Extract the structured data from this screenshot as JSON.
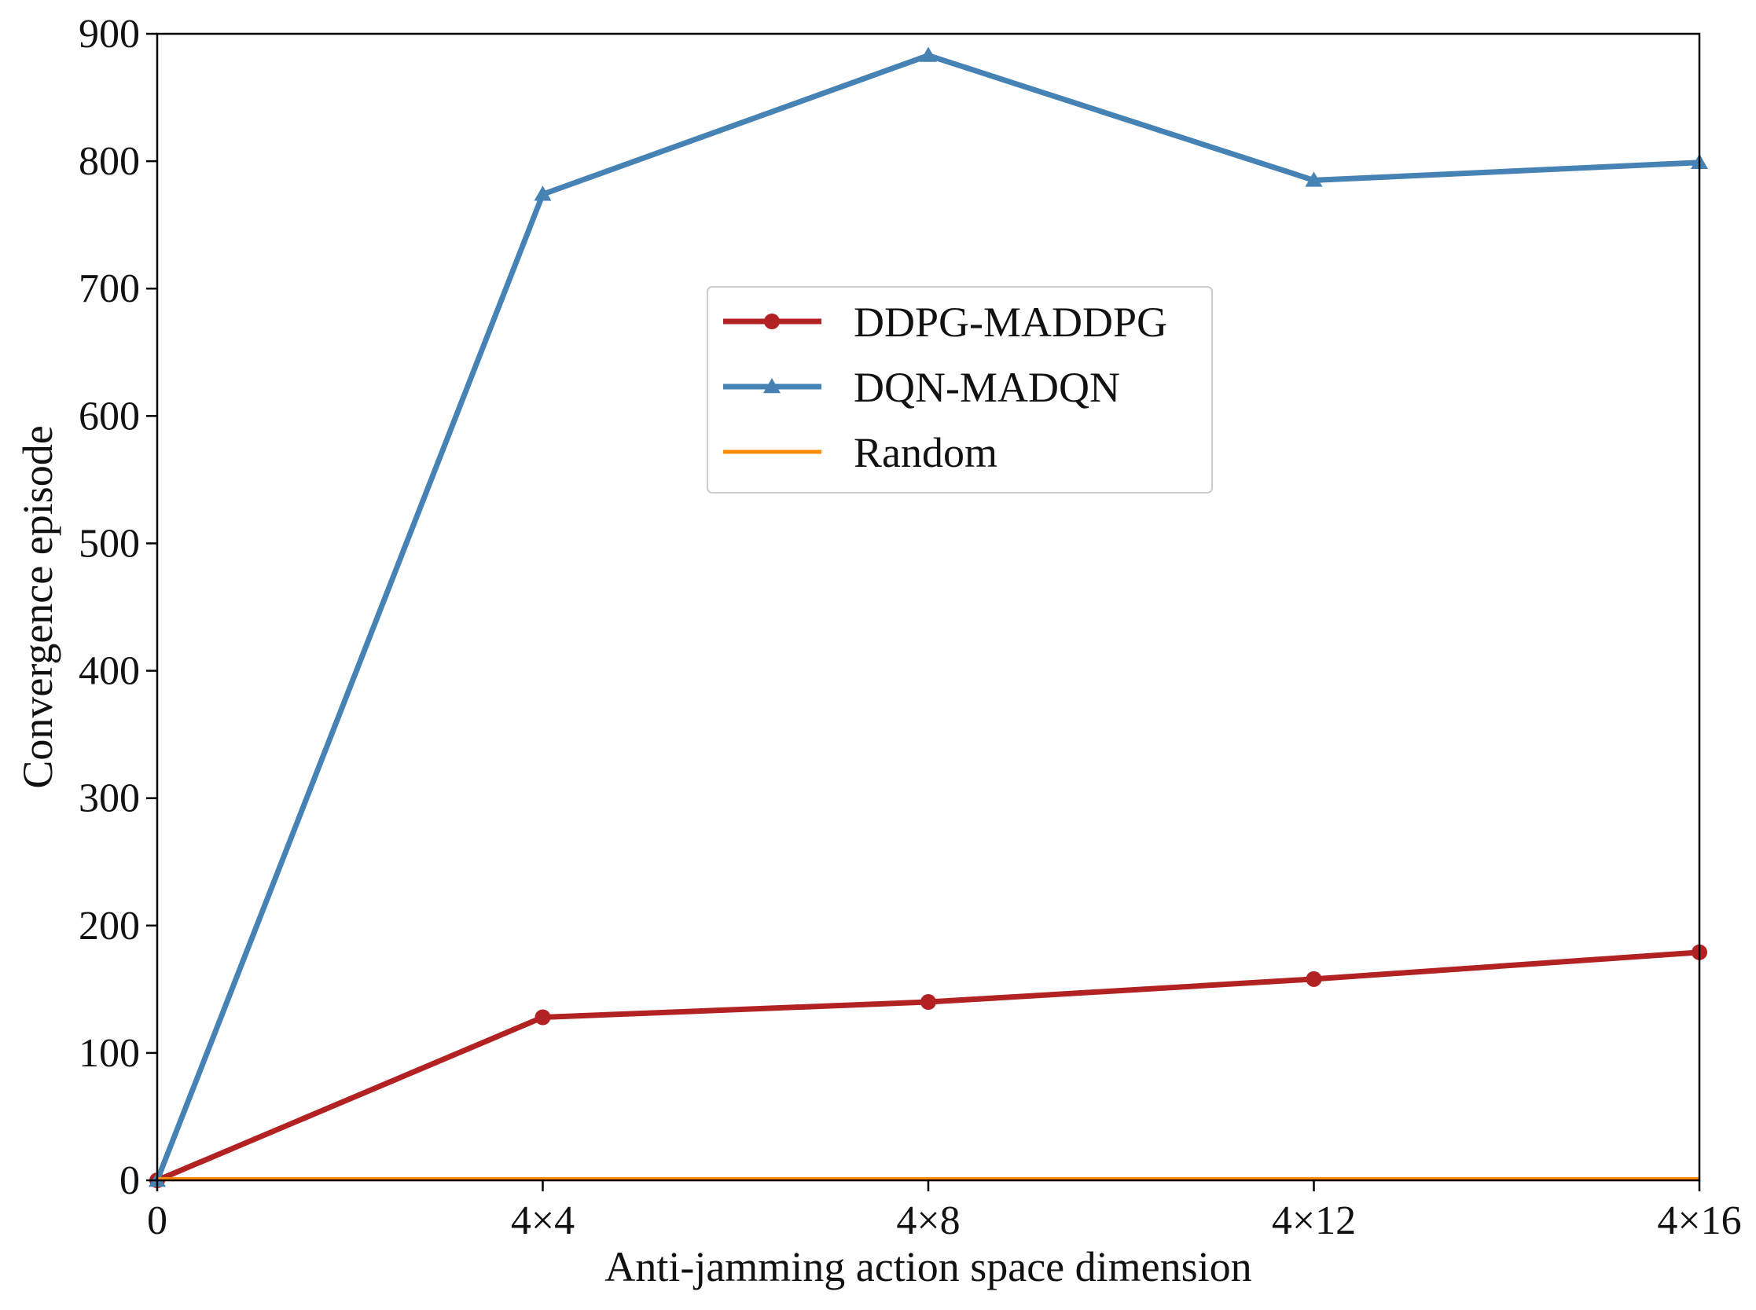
{
  "chart_data": {
    "type": "line",
    "title": "",
    "xlabel": "Anti-jamming action space dimension",
    "ylabel": "Convergence episode",
    "categories": [
      "0",
      "4×4",
      "4×8",
      "4×12",
      "4×16"
    ],
    "ylim": [
      0,
      900
    ],
    "yticks": [
      "0",
      "100",
      "200",
      "300",
      "400",
      "500",
      "600",
      "700",
      "800",
      "900"
    ],
    "grid": false,
    "legend_position": "center",
    "series": [
      {
        "name": "DDPG-MADDPG",
        "values": [
          0,
          128,
          140,
          158,
          179
        ],
        "color": "#b22222",
        "marker": "circle"
      },
      {
        "name": "DQN-MADQN",
        "values": [
          0,
          774,
          883,
          785,
          799
        ],
        "color": "#4682b4",
        "marker": "triangle"
      },
      {
        "name": "Random",
        "values": [
          1,
          1,
          1,
          1,
          1
        ],
        "color": "#ff8c00",
        "marker": "none"
      }
    ]
  }
}
